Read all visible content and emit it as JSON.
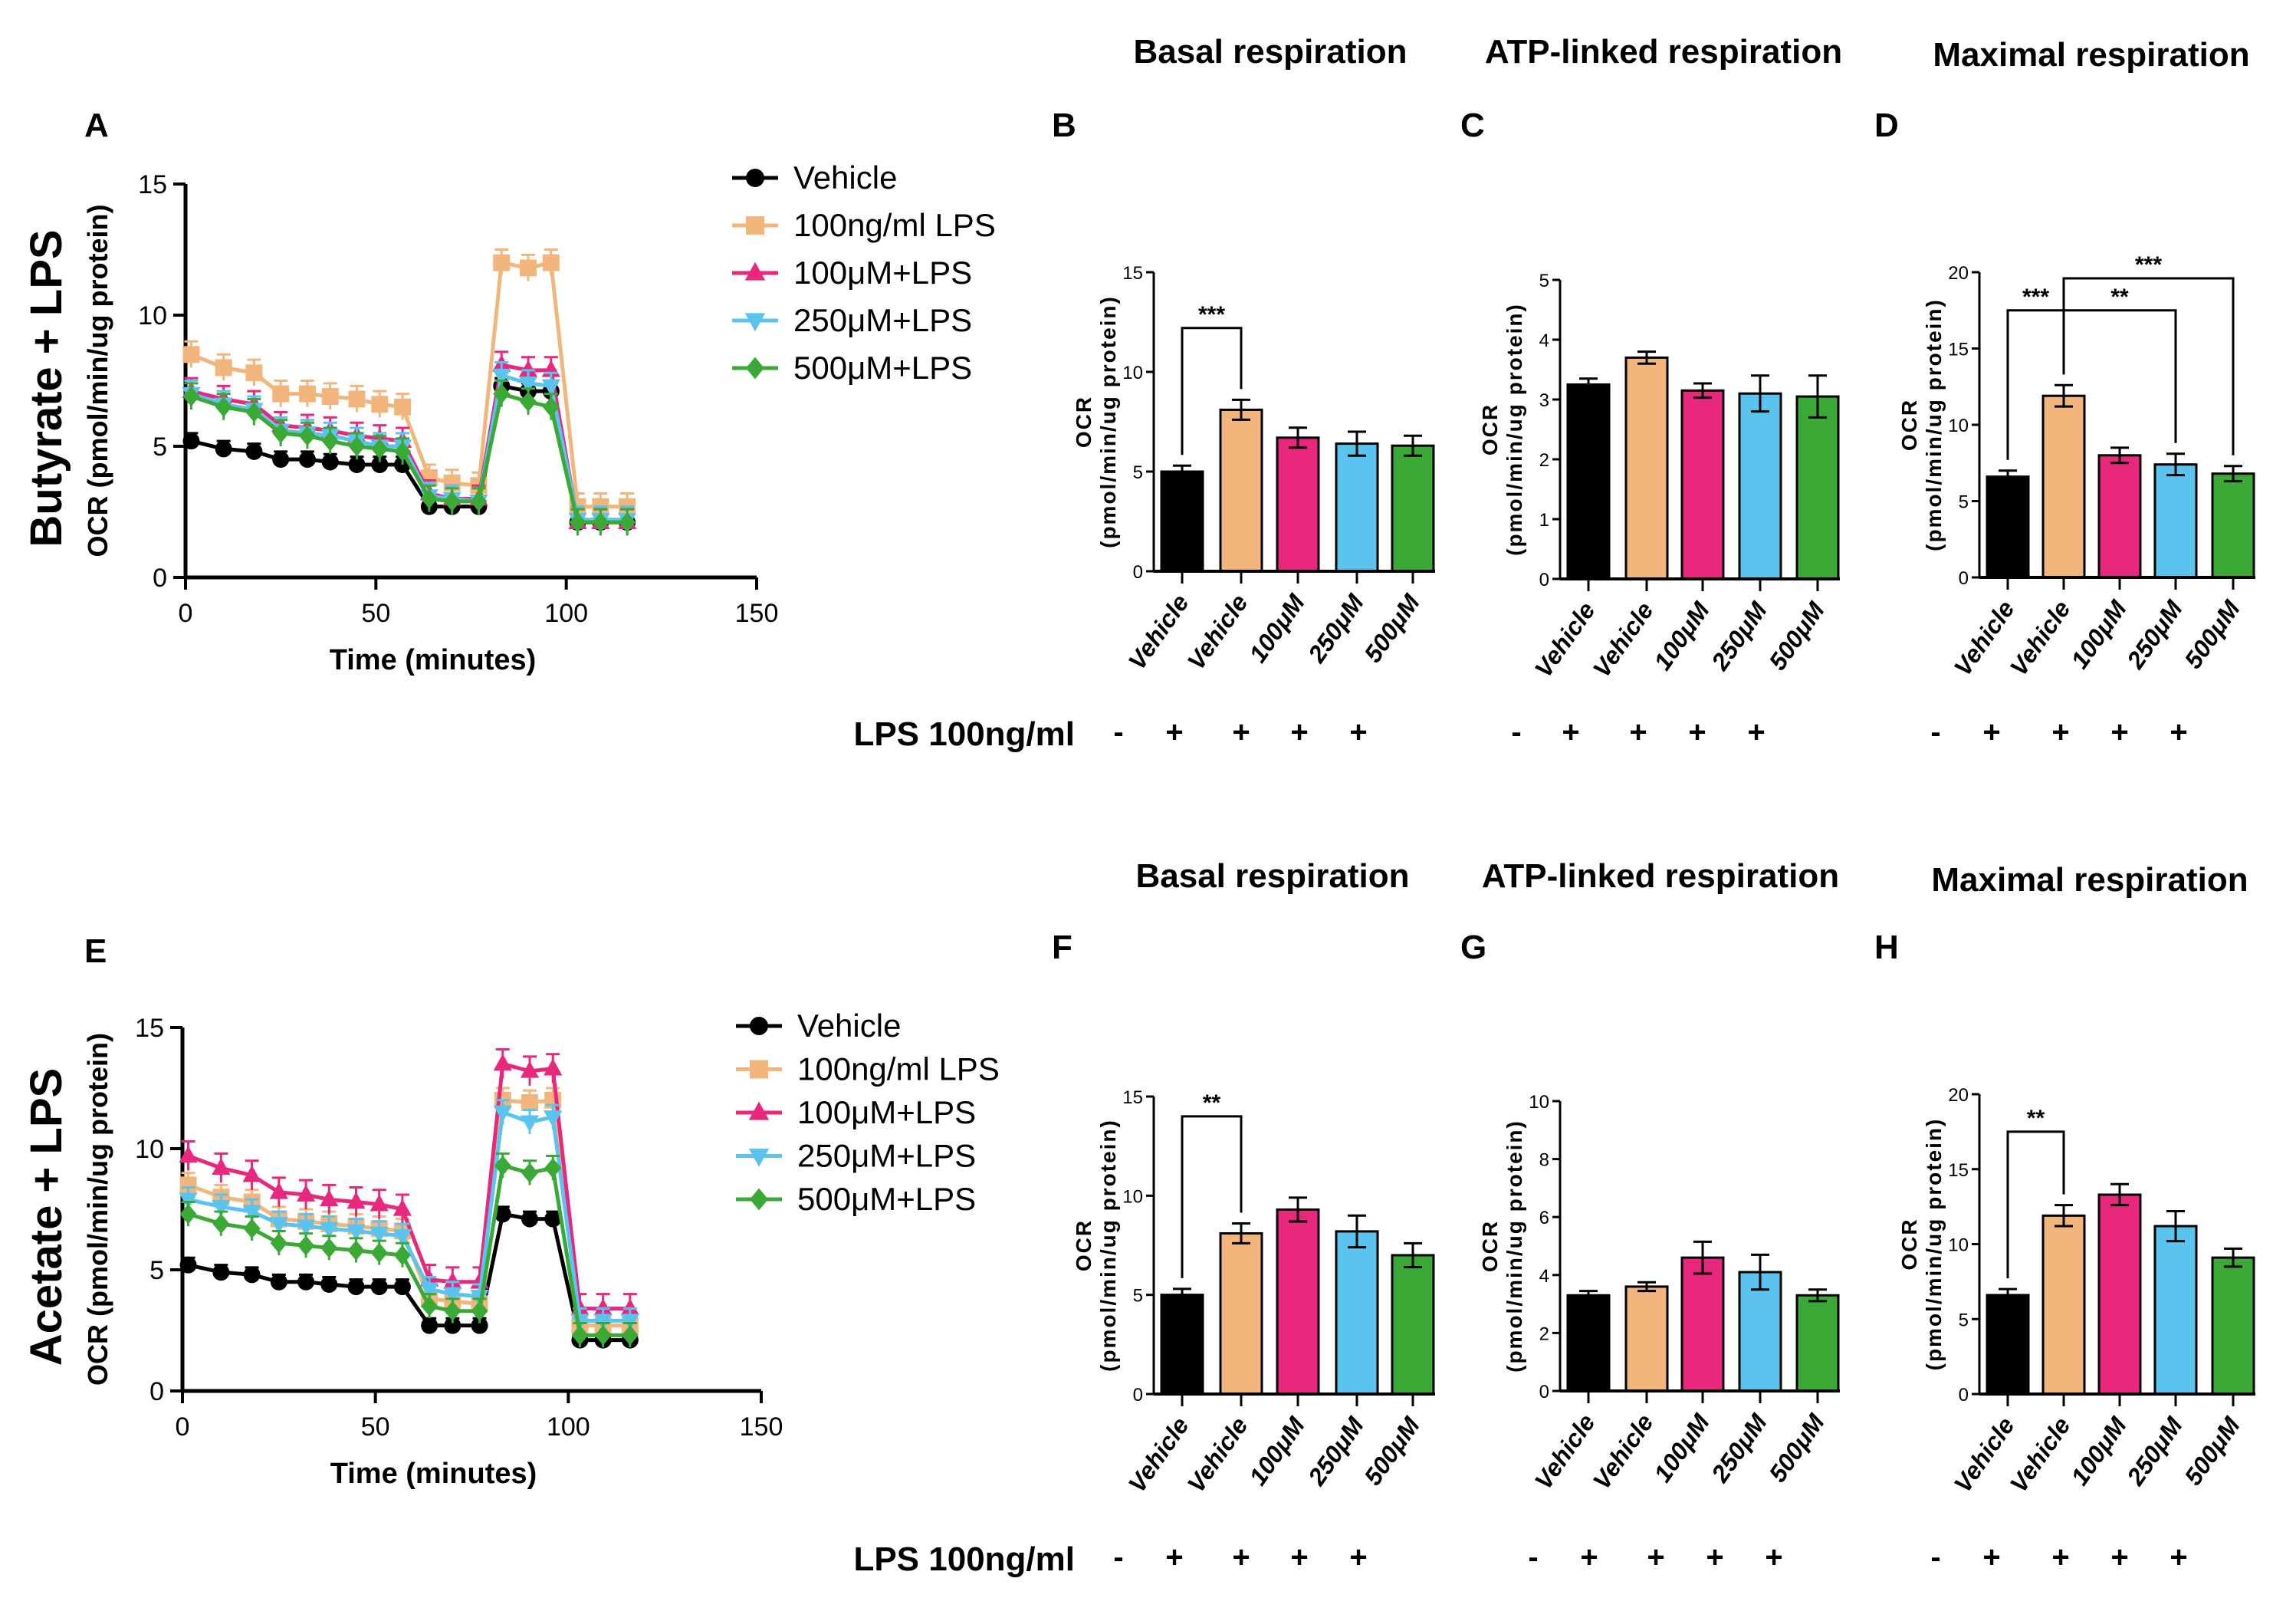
{
  "lps_row_label": "LPS 100ng/ml",
  "lps_signs": [
    "-",
    "+",
    "+",
    "+",
    "+"
  ],
  "colors": {
    "vehicle": "#000000",
    "lps": "#F2B57B",
    "100": "#E8287C",
    "250": "#5BC4EE",
    "500": "#3AA935"
  },
  "chart_data": [
    {
      "panel": "A",
      "type": "line",
      "row_title": "Butyrate + LPS",
      "xlabel": "Time (minutes)",
      "ylabel": "OCR (pmol/min/ug protein)",
      "xlim": [
        0,
        150
      ],
      "ylim": [
        0,
        15
      ],
      "xticks": [
        0,
        50,
        100,
        150
      ],
      "yticks": [
        0,
        5,
        10,
        15
      ],
      "x": [
        1.5,
        10,
        18,
        25,
        32,
        38,
        45,
        51,
        57,
        64,
        70,
        77,
        83,
        90,
        96,
        103,
        109,
        116
      ],
      "series": [
        {
          "name": "Vehicle",
          "marker": "circle",
          "color": "#000000",
          "error": 0.3,
          "values": [
            5.2,
            4.9,
            4.8,
            4.5,
            4.5,
            4.4,
            4.3,
            4.3,
            4.3,
            2.7,
            2.7,
            2.7,
            7.3,
            7.1,
            7.1,
            2.1,
            2.1,
            2.1
          ]
        },
        {
          "name": "100ng/ml LPS",
          "marker": "square",
          "color": "#F2B57B",
          "error": 0.5,
          "values": [
            8.5,
            8.0,
            7.8,
            7.0,
            7.0,
            6.9,
            6.8,
            6.6,
            6.5,
            3.8,
            3.6,
            3.5,
            12.0,
            11.8,
            12.0,
            2.7,
            2.7,
            2.7
          ]
        },
        {
          "name": "100μM+LPS",
          "marker": "triangle-up",
          "color": "#E8287C",
          "error": 0.5,
          "values": [
            7.1,
            6.8,
            6.6,
            5.8,
            5.7,
            5.6,
            5.4,
            5.3,
            5.2,
            3.2,
            3.0,
            3.0,
            8.1,
            7.9,
            7.9,
            2.1,
            2.1,
            2.1
          ]
        },
        {
          "name": "250μM+LPS",
          "marker": "triangle-down",
          "color": "#5BC4EE",
          "error": 0.5,
          "values": [
            7.0,
            6.6,
            6.4,
            5.6,
            5.5,
            5.4,
            5.2,
            5.0,
            5.0,
            3.1,
            3.0,
            2.9,
            7.7,
            7.4,
            7.3,
            2.2,
            2.2,
            2.2
          ]
        },
        {
          "name": "500μM+LPS",
          "marker": "diamond",
          "color": "#3AA935",
          "error": 0.5,
          "values": [
            6.9,
            6.5,
            6.3,
            5.5,
            5.4,
            5.2,
            5.0,
            4.9,
            4.8,
            3.0,
            2.9,
            2.9,
            7.0,
            6.7,
            6.5,
            2.1,
            2.1,
            2.1
          ]
        }
      ]
    },
    {
      "panel": "E",
      "type": "line",
      "row_title": "Acetate + LPS",
      "xlabel": "Time (minutes)",
      "ylabel": "OCR (pmol/min/ug protein)",
      "xlim": [
        0,
        150
      ],
      "ylim": [
        0,
        15
      ],
      "xticks": [
        0,
        50,
        100,
        150
      ],
      "yticks": [
        0,
        5,
        10,
        15
      ],
      "x": [
        1.5,
        10,
        18,
        25,
        32,
        38,
        45,
        51,
        57,
        64,
        70,
        77,
        83,
        90,
        96,
        103,
        109,
        116
      ],
      "series": [
        {
          "name": "Vehicle",
          "marker": "circle",
          "color": "#000000",
          "error": 0.3,
          "values": [
            5.2,
            4.9,
            4.8,
            4.5,
            4.5,
            4.4,
            4.3,
            4.3,
            4.3,
            2.7,
            2.7,
            2.7,
            7.3,
            7.1,
            7.1,
            2.1,
            2.1,
            2.1
          ]
        },
        {
          "name": "100ng/ml LPS",
          "marker": "square",
          "color": "#F2B57B",
          "error": 0.5,
          "values": [
            8.5,
            8.0,
            7.8,
            7.1,
            7.0,
            6.9,
            6.8,
            6.7,
            6.6,
            3.8,
            3.7,
            3.6,
            12.0,
            11.9,
            12.0,
            2.7,
            2.7,
            2.7
          ]
        },
        {
          "name": "100μM+LPS",
          "marker": "triangle-up",
          "color": "#E8287C",
          "error": 0.6,
          "values": [
            9.7,
            9.2,
            8.9,
            8.2,
            8.1,
            7.9,
            7.8,
            7.7,
            7.5,
            4.6,
            4.5,
            4.5,
            13.5,
            13.2,
            13.3,
            3.4,
            3.4,
            3.4
          ]
        },
        {
          "name": "250μM+LPS",
          "marker": "triangle-down",
          "color": "#5BC4EE",
          "error": 0.5,
          "values": [
            7.9,
            7.6,
            7.4,
            6.9,
            6.8,
            6.7,
            6.6,
            6.5,
            6.4,
            4.2,
            4.0,
            3.9,
            11.5,
            11.1,
            11.3,
            2.9,
            2.9,
            2.9
          ]
        },
        {
          "name": "500μM+LPS",
          "marker": "diamond",
          "color": "#3AA935",
          "error": 0.5,
          "values": [
            7.3,
            6.9,
            6.7,
            6.1,
            6.0,
            5.9,
            5.8,
            5.7,
            5.6,
            3.5,
            3.3,
            3.3,
            9.3,
            9.0,
            9.2,
            2.3,
            2.3,
            2.3
          ]
        }
      ]
    },
    {
      "panel": "B",
      "type": "bar",
      "title": "Basal respiration",
      "ylabel": [
        "OCR",
        "(pmol/min/ug protein)"
      ],
      "ylim": [
        0,
        15
      ],
      "yticks": [
        0,
        5,
        10,
        15
      ],
      "categories": [
        "Vehicle",
        "Vehicle",
        "100μM",
        "250μM",
        "500μM"
      ],
      "values": [
        5.0,
        8.1,
        6.7,
        6.4,
        6.3
      ],
      "sem": [
        0.3,
        0.5,
        0.5,
        0.6,
        0.5
      ],
      "significance": [
        {
          "from": 0,
          "to": 1,
          "label": "***",
          "level": 12.2
        }
      ]
    },
    {
      "panel": "C",
      "type": "bar",
      "title": "ATP-linked respiration",
      "ylabel": [
        "OCR",
        "(pmol/min/ug protein)"
      ],
      "ylim": [
        0,
        5
      ],
      "yticks": [
        0,
        1,
        2,
        3,
        4,
        5
      ],
      "categories": [
        "Vehicle",
        "Vehicle",
        "100μM",
        "250μM",
        "500μM"
      ],
      "values": [
        3.25,
        3.7,
        3.15,
        3.1,
        3.05
      ],
      "sem": [
        0.1,
        0.1,
        0.12,
        0.3,
        0.35
      ],
      "significance": []
    },
    {
      "panel": "D",
      "type": "bar",
      "title": "Maximal respiration",
      "ylabel": [
        "OCR",
        "(pmol/min/ug protein)"
      ],
      "ylim": [
        0,
        20
      ],
      "yticks": [
        0,
        5,
        10,
        15,
        20
      ],
      "categories": [
        "Vehicle",
        "Vehicle",
        "100μM",
        "250μM",
        "500μM"
      ],
      "values": [
        6.6,
        11.9,
        8.0,
        7.4,
        6.8
      ],
      "sem": [
        0.4,
        0.7,
        0.5,
        0.7,
        0.5
      ],
      "significance": [
        {
          "from": 0,
          "to": 1,
          "label": "***",
          "level": 17.5
        },
        {
          "from": 1,
          "to": 3,
          "label": "**",
          "level": 17.5
        },
        {
          "from": 1,
          "to": 4,
          "label": "***",
          "level": 19.6
        }
      ]
    },
    {
      "panel": "F",
      "type": "bar",
      "title": "Basal respiration",
      "ylabel": [
        "OCR",
        "(pmol/min/ug protein)"
      ],
      "ylim": [
        0,
        15
      ],
      "yticks": [
        0,
        5,
        10,
        15
      ],
      "categories": [
        "Vehicle",
        "Vehicle",
        "100μM",
        "250μM",
        "500μM"
      ],
      "values": [
        5.0,
        8.1,
        9.3,
        8.2,
        7.0
      ],
      "sem": [
        0.3,
        0.5,
        0.6,
        0.8,
        0.6
      ],
      "significance": [
        {
          "from": 0,
          "to": 1,
          "label": "**",
          "level": 14.0
        }
      ]
    },
    {
      "panel": "G",
      "type": "bar",
      "title": "ATP-linked respiration",
      "ylabel": [
        "OCR",
        "(pmol/min/ug protein)"
      ],
      "ylim": [
        0,
        10
      ],
      "yticks": [
        0,
        2,
        4,
        6,
        8,
        10
      ],
      "categories": [
        "Vehicle",
        "Vehicle",
        "100μM",
        "250μM",
        "500μM"
      ],
      "values": [
        3.3,
        3.6,
        4.6,
        4.1,
        3.3
      ],
      "sem": [
        0.15,
        0.15,
        0.55,
        0.6,
        0.2
      ],
      "significance": []
    },
    {
      "panel": "H",
      "type": "bar",
      "title": "Maximal respiration",
      "ylabel": [
        "OCR",
        "(pmol/min/ug protein)"
      ],
      "ylim": [
        0,
        20
      ],
      "yticks": [
        0,
        5,
        10,
        15,
        20
      ],
      "categories": [
        "Vehicle",
        "Vehicle",
        "100μM",
        "250μM",
        "500μM"
      ],
      "values": [
        6.6,
        11.9,
        13.3,
        11.2,
        9.1
      ],
      "sem": [
        0.4,
        0.7,
        0.7,
        1.0,
        0.6
      ],
      "significance": [
        {
          "from": 0,
          "to": 1,
          "label": "**",
          "level": 17.5
        }
      ]
    }
  ]
}
